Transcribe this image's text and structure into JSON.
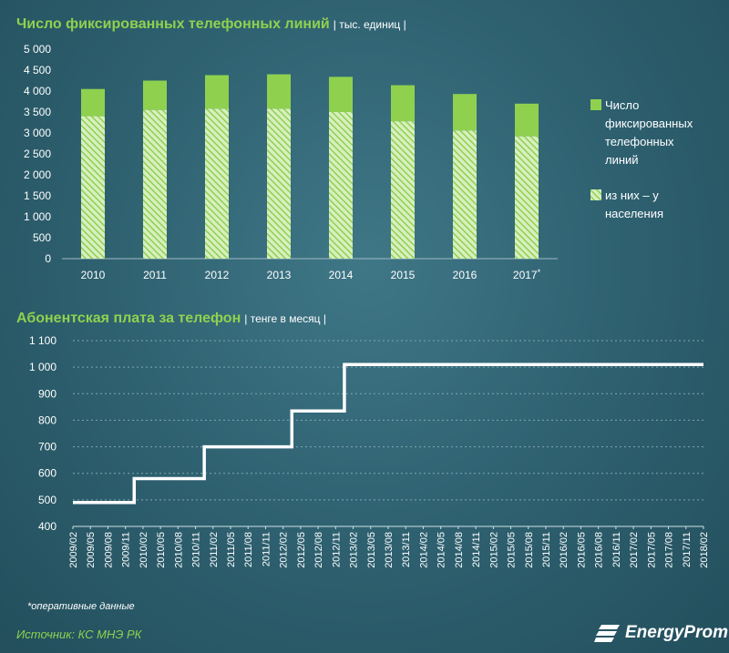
{
  "chart_data": [
    {
      "type": "bar",
      "title": "Число фиксированных телефонных линий",
      "unit": "| тыс. единиц |",
      "categories": [
        "2010",
        "2011",
        "2012",
        "2013",
        "2014",
        "2015",
        "2016",
        "2017*"
      ],
      "series": [
        {
          "name": "Число фиксированных телефонных линий",
          "color": "#8fd14f",
          "values": [
            4050,
            4250,
            4380,
            4400,
            4340,
            4140,
            3930,
            3700
          ]
        },
        {
          "name": "из них – у населения",
          "color": "#8fd14f",
          "pattern": "hatched",
          "values": [
            3400,
            3550,
            3580,
            3580,
            3500,
            3280,
            3060,
            2920
          ]
        }
      ],
      "ylim": [
        0,
        5000
      ],
      "yticks": [
        "5 000",
        "4 500",
        "4 000",
        "3 500",
        "3 000",
        "2 500",
        "2 000",
        "1 500",
        "1 000",
        "500",
        "0"
      ],
      "legend": [
        "Число фиксированных телефонных линий",
        "из них – у населения"
      ],
      "legend_position": "right"
    },
    {
      "type": "line",
      "step": true,
      "title": "Абонентская плата за телефон",
      "unit": "| тенге в месяц |",
      "x": [
        "2009/02",
        "2009/05",
        "2009/08",
        "2009/11",
        "2010/02",
        "2010/05",
        "2010/08",
        "2010/11",
        "2011/02",
        "2011/05",
        "2011/08",
        "2011/11",
        "2012/02",
        "2012/05",
        "2012/08",
        "2012/11",
        "2013/02",
        "2013/05",
        "2013/08",
        "2013/11",
        "2014/02",
        "2014/05",
        "2014/08",
        "2014/11",
        "2015/02",
        "2015/05",
        "2015/08",
        "2015/11",
        "2016/02",
        "2016/05",
        "2016/08",
        "2016/11",
        "2017/02",
        "2017/05",
        "2017/08",
        "2017/11",
        "2018/02"
      ],
      "series": [
        {
          "name": "Абонентская плата",
          "color": "#ffffff",
          "values": [
            490,
            490,
            490,
            490,
            580,
            580,
            580,
            580,
            700,
            700,
            700,
            700,
            700,
            835,
            835,
            835,
            1010,
            1010,
            1010,
            1010,
            1010,
            1010,
            1010,
            1010,
            1010,
            1010,
            1010,
            1010,
            1010,
            1010,
            1010,
            1010,
            1010,
            1010,
            1010,
            1010,
            1010
          ]
        }
      ],
      "ylim": [
        400,
        1100
      ],
      "yticks": [
        "1 100",
        "1 000",
        "900",
        "800",
        "700",
        "600",
        "500",
        "400"
      ]
    }
  ],
  "footnote": "*оперативные данные",
  "source": "Источник: КС МНЭ РК",
  "brand": "EnergyProm"
}
